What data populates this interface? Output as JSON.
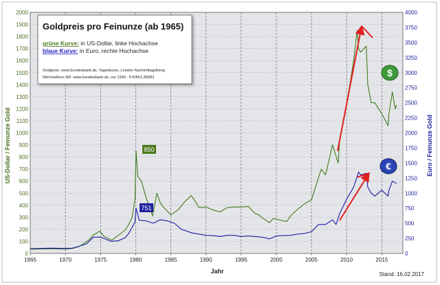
{
  "chart_data": {
    "type": "line",
    "title": "Goldpreis pro Feinunze (ab 1965)",
    "legend": {
      "green_label": "grüne Kurve:",
      "green_desc": " in US-Dollar, linke Hochachse",
      "blue_label": "blaue Kurve:",
      "blue_desc": " in Euro, rechte Hochachse"
    },
    "source_line1": "Goldpreis: www.bundesbank.de, Tageskurse, London Nachmittagsfixing",
    "source_line2": "Wechselkurs $/€: www.bundesbank.de, vor 1999 : €=DM/1,95583",
    "xlabel": "Jahr",
    "ylabel_left": "US-Dollar / Feinunze Gold",
    "ylabel_right": "Euro / Feinunze Gold",
    "footer": "Stand: 16.02.2017",
    "xlim": [
      1965,
      2018
    ],
    "ylim_left": [
      0,
      2000
    ],
    "ylim_right": [
      0,
      4000
    ],
    "x_ticks": [
      "1965",
      "1970",
      "1975",
      "1980",
      "1985",
      "1990",
      "1995",
      "2000",
      "2005",
      "2010",
      "2015"
    ],
    "y_ticks_left": [
      "0",
      "100",
      "200",
      "300",
      "400",
      "500",
      "600",
      "700",
      "800",
      "900",
      "1000",
      "1100",
      "1200",
      "1300",
      "1400",
      "1500",
      "1600",
      "1700",
      "1800",
      "1900",
      "2000"
    ],
    "y_ticks_right": [
      "0",
      "250",
      "500",
      "750",
      "1000",
      "1250",
      "1500",
      "1750",
      "2000",
      "2250",
      "2500",
      "2750",
      "3000",
      "3250",
      "3500",
      "3750",
      "4000"
    ],
    "grid": "horizontal dotted, vertical dashed every 5 years",
    "annotations": [
      {
        "text": "850",
        "series": "USD",
        "x": 1980.05,
        "y": 850
      },
      {
        "text": "751",
        "series": "EUR",
        "x": 1980.05,
        "y": 751
      }
    ],
    "series": [
      {
        "name": "grüne Kurve",
        "unit": "US-Dollar",
        "axis": "left",
        "color": "#3f7a1e",
        "x": [
          1965,
          1968,
          1970,
          1971,
          1972,
          1973,
          1973.5,
          1974,
          1974.9,
          1975.5,
          1976.6,
          1977.5,
          1978.5,
          1979,
          1979.5,
          1979.9,
          1980.05,
          1980.3,
          1980.8,
          1981.5,
          1982.4,
          1983,
          1983.5,
          1984,
          1985,
          1986,
          1987,
          1987.9,
          1988.5,
          1989,
          1990,
          1991,
          1992,
          1993,
          1994,
          1995,
          1996,
          1997,
          1997.5,
          1998,
          1999,
          1999.6,
          2000,
          2001,
          2001.5,
          2002,
          2003,
          2004,
          2005,
          2006,
          2006.4,
          2007,
          2008,
          2008.8,
          2009,
          2010,
          2011,
          2011.5,
          2011.7,
          2012,
          2012.8,
          2013,
          2013.5,
          2014,
          2015,
          2015.9,
          2016,
          2016.5,
          2016.9,
          2017.1
        ],
        "y": [
          35,
          39,
          36,
          41,
          58,
          97,
          120,
          154,
          185,
          140,
          110,
          148,
          194,
          240,
          300,
          450,
          850,
          640,
          600,
          460,
          310,
          500,
          420,
          380,
          320,
          360,
          430,
          480,
          430,
          380,
          385,
          360,
          345,
          380,
          385,
          385,
          390,
          330,
          320,
          295,
          255,
          290,
          285,
          270,
          265,
          310,
          365,
          410,
          445,
          630,
          700,
          650,
          900,
          750,
          930,
          1230,
          1600,
          1850,
          1700,
          1670,
          1720,
          1400,
          1250,
          1250,
          1160,
          1060,
          1150,
          1340,
          1200,
          1230
        ]
      },
      {
        "name": "blaue Kurve",
        "unit": "Euro",
        "axis": "right",
        "color": "#1818a8",
        "x": [
          1965,
          1968,
          1970,
          1971,
          1972,
          1973,
          1974,
          1975,
          1976.5,
          1977.5,
          1978.5,
          1979,
          1979.9,
          1980.05,
          1980.5,
          1981.5,
          1982.5,
          1983.5,
          1984.5,
          1985.5,
          1986.5,
          1988,
          1989,
          1990,
          1991,
          1992,
          1993,
          1994,
          1995,
          1996,
          1997,
          1998,
          1999,
          2000,
          2001,
          2002,
          2003,
          2004,
          2005,
          2006,
          2007,
          2008,
          2008.5,
          2009,
          2010,
          2011,
          2011.7,
          2012,
          2012.8,
          2013,
          2013.5,
          2014,
          2015,
          2015.9,
          2016,
          2016.5,
          2017.1
        ],
        "y": [
          80,
          88,
          82,
          88,
          120,
          160,
          270,
          270,
          200,
          210,
          260,
          330,
          520,
          751,
          550,
          540,
          500,
          560,
          540,
          500,
          400,
          340,
          320,
          300,
          295,
          280,
          300,
          300,
          280,
          290,
          280,
          270,
          240,
          290,
          295,
          300,
          320,
          330,
          360,
          480,
          480,
          560,
          480,
          660,
          900,
          1100,
          1350,
          1300,
          1330,
          1100,
          1000,
          950,
          1050,
          950,
          1040,
          1200,
          1160
        ]
      }
    ]
  }
}
